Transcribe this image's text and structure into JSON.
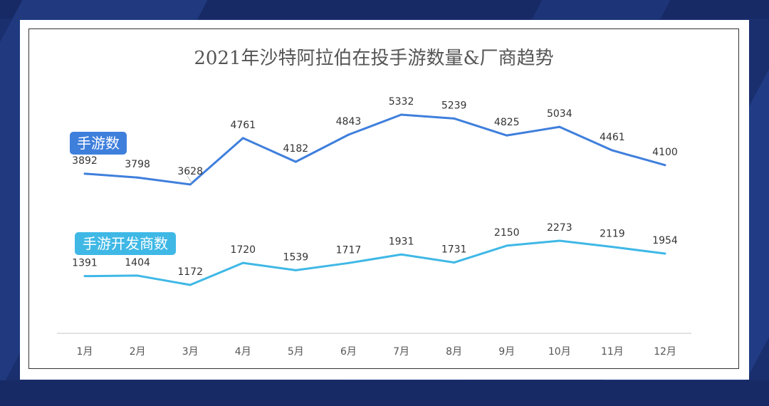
{
  "chart_data": {
    "type": "line",
    "title": "2021年沙特阿拉伯在投手游数量&厂商趋势",
    "categories": [
      "1月",
      "2月",
      "3月",
      "4月",
      "5月",
      "6月",
      "7月",
      "8月",
      "9月",
      "10月",
      "11月",
      "12月"
    ],
    "series": [
      {
        "name": "手游数",
        "color": "#3f7fdc",
        "label_bg": "#3f7fdc",
        "values": [
          3892,
          3798,
          3628,
          4761,
          4182,
          4843,
          5332,
          5239,
          4825,
          5034,
          4461,
          4100
        ]
      },
      {
        "name": "手游开发商数",
        "color": "#3fb8e6",
        "label_bg": "#3fb8e6",
        "values": [
          1391,
          1404,
          1172,
          1720,
          1539,
          1717,
          1931,
          1731,
          2150,
          2273,
          2119,
          1954
        ]
      }
    ],
    "legend": "inline-left",
    "grid": false
  }
}
